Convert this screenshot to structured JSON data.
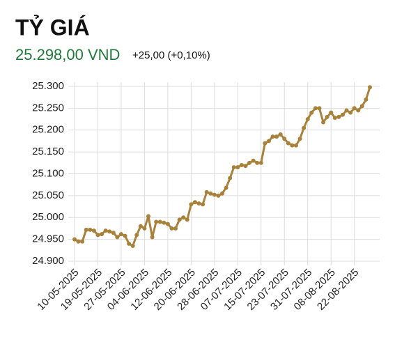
{
  "chart_data": {
    "type": "line",
    "title": "TỶ GIÁ",
    "subtitle": "25.298,00 VND",
    "annotation": "+25,00 (+0,10%)",
    "categories": [
      "10-05-2025",
      null,
      null,
      null,
      null,
      null,
      "19-05-2025",
      null,
      null,
      null,
      null,
      null,
      "27-05-2025",
      null,
      null,
      null,
      null,
      null,
      "04-06-2025",
      null,
      null,
      null,
      null,
      null,
      "12-06-2025",
      null,
      null,
      null,
      null,
      null,
      "20-06-2025",
      null,
      null,
      null,
      null,
      null,
      "28-06-2025",
      null,
      null,
      null,
      null,
      null,
      "07-07-2025",
      null,
      null,
      null,
      null,
      null,
      "15-07-2025",
      null,
      null,
      null,
      null,
      null,
      "23-07-2025",
      null,
      null,
      null,
      null,
      null,
      "31-07-2025",
      null,
      null,
      null,
      null,
      null,
      "08-08-2025",
      null,
      null,
      null,
      null,
      null,
      "22-08-2025",
      null,
      null,
      null,
      null
    ],
    "values": [
      24950,
      24945,
      24945,
      24972,
      24972,
      24970,
      24960,
      24962,
      24970,
      24968,
      24965,
      24955,
      24962,
      24958,
      24940,
      24935,
      24960,
      24980,
      24975,
      25003,
      24955,
      24990,
      24990,
      24988,
      24985,
      24975,
      24975,
      24995,
      25000,
      24995,
      25030,
      25035,
      25032,
      25030,
      25058,
      25055,
      25052,
      25050,
      25055,
      25068,
      25090,
      25115,
      25115,
      25120,
      25118,
      25125,
      25130,
      25125,
      25125,
      25170,
      25175,
      25185,
      25185,
      25190,
      25180,
      25170,
      25165,
      25165,
      25180,
      25205,
      25225,
      25240,
      25250,
      25250,
      25218,
      25230,
      25240,
      25228,
      25230,
      25235,
      25245,
      25240,
      25250,
      25245,
      25255,
      25270,
      25298
    ],
    "color": "#a8823a",
    "ylim": [
      24900,
      25300
    ],
    "yticks": [
      {
        "value": 24900,
        "label": "24.900"
      },
      {
        "value": 24950,
        "label": "24.950"
      },
      {
        "value": 25000,
        "label": "25.000"
      },
      {
        "value": 25050,
        "label": "25.050"
      },
      {
        "value": 25100,
        "label": "25.100"
      },
      {
        "value": 25150,
        "label": "25.150"
      },
      {
        "value": 25200,
        "label": "25.200"
      },
      {
        "value": 25250,
        "label": "25.250"
      },
      {
        "value": 25300,
        "label": "25.300"
      }
    ],
    "grid": true
  }
}
